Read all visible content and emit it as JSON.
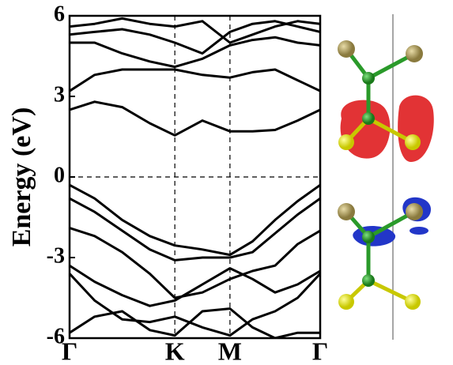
{
  "chart_data": {
    "type": "line",
    "y_label": "Energy (eV)",
    "x": [
      0,
      0.1,
      0.21,
      0.32,
      0.42,
      0.53,
      0.64,
      0.73,
      0.82,
      0.91,
      1.0
    ],
    "xlim": [
      0,
      1
    ],
    "xticks": [
      {
        "value": 0,
        "label": "Γ"
      },
      {
        "value": 0.42,
        "label": "K"
      },
      {
        "value": 0.64,
        "label": "M"
      },
      {
        "value": 1.0,
        "label": "Γ"
      }
    ],
    "ylim": [
      -6,
      6
    ],
    "yticks": [
      -6,
      -3,
      0,
      3,
      6
    ],
    "series": [
      {
        "color": "#000000",
        "values": [
          2.5,
          2.8,
          2.6,
          2.0,
          1.55,
          2.1,
          1.7,
          1.7,
          1.75,
          2.1,
          2.5
        ]
      },
      {
        "color": "#000000",
        "values": [
          3.2,
          3.8,
          4.0,
          4.0,
          4.0,
          3.8,
          3.7,
          3.9,
          4.0,
          3.6,
          3.2
        ]
      },
      {
        "color": "#000000",
        "values": [
          5.0,
          5.0,
          4.6,
          4.3,
          4.1,
          4.4,
          4.9,
          5.1,
          5.2,
          5.0,
          4.9
        ]
      },
      {
        "color": "#000000",
        "values": [
          5.3,
          5.4,
          5.5,
          5.3,
          5.0,
          4.6,
          5.4,
          5.7,
          5.8,
          5.6,
          5.4
        ]
      },
      {
        "color": "#000000",
        "values": [
          5.6,
          5.7,
          5.9,
          5.7,
          5.6,
          5.8,
          5.0,
          5.3,
          5.6,
          5.8,
          5.7
        ]
      },
      {
        "color": "#000000",
        "values": [
          -0.3,
          -0.8,
          -1.6,
          -2.2,
          -2.55,
          -2.7,
          -2.9,
          -2.4,
          -1.6,
          -0.9,
          -0.3
        ]
      },
      {
        "color": "#000000",
        "values": [
          -0.8,
          -1.3,
          -2.0,
          -2.7,
          -3.1,
          -3.0,
          -3.0,
          -2.8,
          -2.1,
          -1.4,
          -0.8
        ]
      },
      {
        "color": "#000000",
        "values": [
          -1.9,
          -2.2,
          -2.8,
          -3.6,
          -4.5,
          -4.3,
          -3.8,
          -3.5,
          -3.3,
          -2.5,
          -2.0
        ]
      },
      {
        "color": "#000000",
        "values": [
          -3.3,
          -3.9,
          -4.4,
          -4.8,
          -4.6,
          -4.0,
          -3.4,
          -3.8,
          -4.3,
          -4.0,
          -3.5
        ]
      },
      {
        "color": "#000000",
        "values": [
          -3.6,
          -4.6,
          -5.3,
          -5.4,
          -5.2,
          -5.6,
          -5.9,
          -5.3,
          -5.0,
          -4.5,
          -3.6
        ]
      },
      {
        "color": "#000000",
        "values": [
          -5.8,
          -5.2,
          -5.0,
          -5.7,
          -5.9,
          -5.0,
          -4.9,
          -5.6,
          -6.0,
          -5.8,
          -5.8
        ]
      }
    ]
  }
}
